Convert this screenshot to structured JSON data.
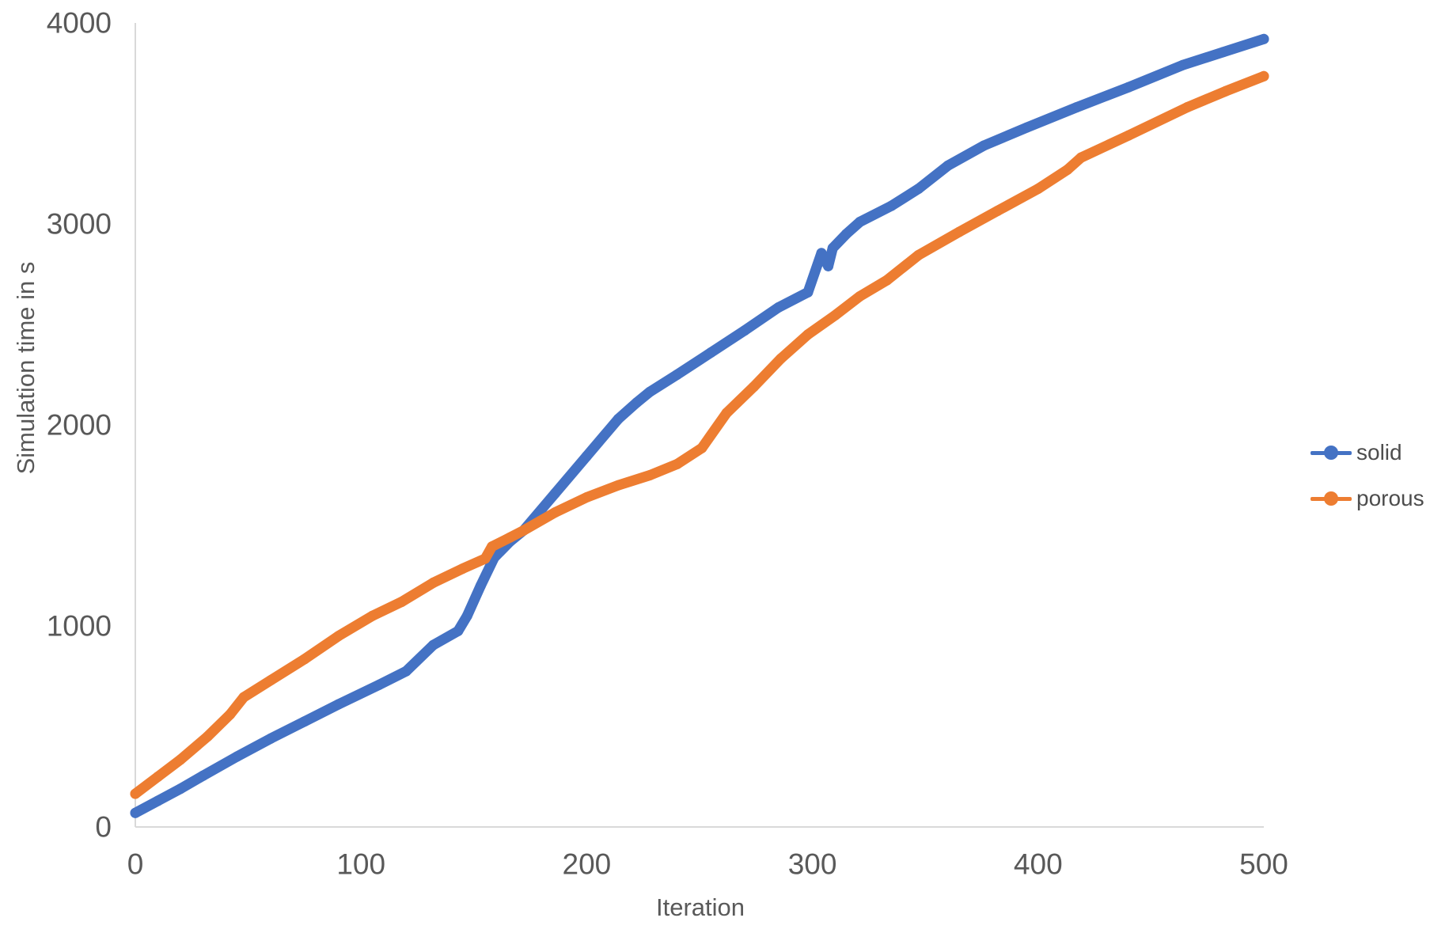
{
  "chart_data": {
    "type": "line",
    "title": "",
    "xlabel": "Iteration",
    "ylabel": "Simulation time in s",
    "xlim": [
      0,
      500
    ],
    "ylim": [
      0,
      4000
    ],
    "x_ticks": [
      0,
      100,
      200,
      300,
      400,
      500
    ],
    "y_ticks": [
      0,
      1000,
      2000,
      3000,
      4000
    ],
    "grid": false,
    "legend_position": "right",
    "colors": {
      "axis_line": "#d9d9d9",
      "tick_text": "#595959",
      "background": "#ffffff"
    },
    "series": [
      {
        "name": "solid",
        "color": "#4472C4",
        "marker": "circle",
        "points": [
          [
            0,
            70
          ],
          [
            10,
            130
          ],
          [
            20,
            190
          ],
          [
            30,
            255
          ],
          [
            45,
            350
          ],
          [
            60,
            440
          ],
          [
            75,
            525
          ],
          [
            90,
            610
          ],
          [
            108,
            707
          ],
          [
            120,
            775
          ],
          [
            132,
            905
          ],
          [
            143,
            975
          ],
          [
            147,
            1050
          ],
          [
            153,
            1200
          ],
          [
            159,
            1340
          ],
          [
            166,
            1420
          ],
          [
            172,
            1475
          ],
          [
            186,
            1660
          ],
          [
            200,
            1845
          ],
          [
            214,
            2030
          ],
          [
            222,
            2110
          ],
          [
            228,
            2165
          ],
          [
            240,
            2250
          ],
          [
            255,
            2360
          ],
          [
            270,
            2470
          ],
          [
            285,
            2585
          ],
          [
            298,
            2660
          ],
          [
            304,
            2855
          ],
          [
            307,
            2790
          ],
          [
            309,
            2880
          ],
          [
            315,
            2950
          ],
          [
            321,
            3010
          ],
          [
            335,
            3090
          ],
          [
            347,
            3175
          ],
          [
            360,
            3290
          ],
          [
            376,
            3390
          ],
          [
            395,
            3480
          ],
          [
            417,
            3580
          ],
          [
            440,
            3680
          ],
          [
            464,
            3790
          ],
          [
            482,
            3855
          ],
          [
            500,
            3920
          ]
        ]
      },
      {
        "name": "porous",
        "color": "#ED7D31",
        "marker": "circle",
        "points": [
          [
            0,
            165
          ],
          [
            10,
            250
          ],
          [
            20,
            335
          ],
          [
            32,
            450
          ],
          [
            42,
            560
          ],
          [
            48,
            645
          ],
          [
            60,
            730
          ],
          [
            75,
            835
          ],
          [
            90,
            950
          ],
          [
            105,
            1050
          ],
          [
            118,
            1120
          ],
          [
            132,
            1215
          ],
          [
            145,
            1285
          ],
          [
            155,
            1335
          ],
          [
            158,
            1395
          ],
          [
            166,
            1440
          ],
          [
            172,
            1475
          ],
          [
            186,
            1565
          ],
          [
            200,
            1640
          ],
          [
            214,
            1700
          ],
          [
            228,
            1750
          ],
          [
            240,
            1805
          ],
          [
            251,
            1885
          ],
          [
            262,
            2060
          ],
          [
            274,
            2190
          ],
          [
            286,
            2330
          ],
          [
            298,
            2450
          ],
          [
            310,
            2545
          ],
          [
            321,
            2640
          ],
          [
            333,
            2720
          ],
          [
            347,
            2845
          ],
          [
            365,
            2960
          ],
          [
            382,
            3065
          ],
          [
            400,
            3175
          ],
          [
            413,
            3270
          ],
          [
            419,
            3330
          ],
          [
            440,
            3440
          ],
          [
            466,
            3580
          ],
          [
            483,
            3660
          ],
          [
            500,
            3735
          ]
        ]
      }
    ]
  }
}
